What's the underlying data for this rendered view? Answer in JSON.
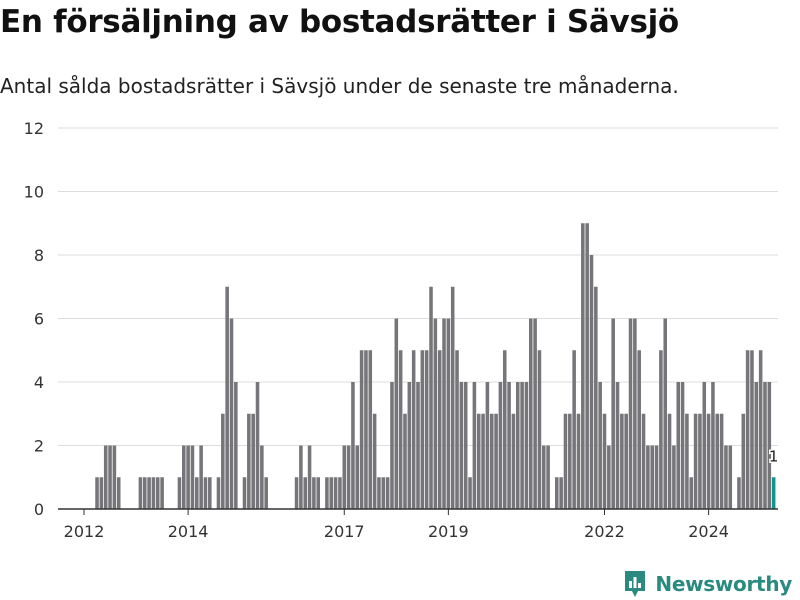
{
  "header": {
    "title": "En försäljning av bostadsrätter i Sävsjö",
    "subtitle": "Antal sålda bostadsrätter i Sävsjö under de senaste tre månaderna."
  },
  "brand": {
    "name": "Newsworthy",
    "logo_icon": "bar-chart-pin-icon"
  },
  "colors": {
    "bar": "#76767a",
    "highlight": "#12958a",
    "grid": "#dddddd",
    "brand": "#2a8a80"
  },
  "chart_data": {
    "type": "bar",
    "title": "En försäljning av bostadsrätter i Sävsjö",
    "subtitle": "Antal sålda bostadsrätter i Sävsjö under de senaste tre månaderna.",
    "xlabel": "",
    "ylabel": "",
    "ylim": [
      0,
      12
    ],
    "yticks": [
      0,
      2,
      4,
      6,
      8,
      10,
      12
    ],
    "grid": true,
    "x_start": "2011-07",
    "x_end": "2025-05",
    "x_ticks": [
      {
        "label": "2012",
        "date": "2012-01"
      },
      {
        "label": "2014",
        "date": "2014-01"
      },
      {
        "label": "2017",
        "date": "2017-01"
      },
      {
        "label": "2019",
        "date": "2019-01"
      },
      {
        "label": "2022",
        "date": "2022-01"
      },
      {
        "label": "2024",
        "date": "2024-01"
      }
    ],
    "series": [
      {
        "start": "2012-04",
        "frequency": "monthly",
        "values": [
          1,
          1,
          2,
          2,
          2,
          1,
          0,
          0,
          0,
          0,
          1,
          1,
          1,
          1,
          1,
          1,
          0,
          0,
          0,
          1,
          2,
          2,
          2,
          1,
          2,
          1,
          1,
          0,
          1,
          3,
          7,
          6,
          4,
          0,
          1,
          3,
          3,
          4,
          2,
          1,
          0,
          0,
          0,
          0,
          0,
          0,
          1,
          2,
          1,
          2,
          1,
          1,
          0,
          1,
          1,
          1,
          1,
          2,
          2,
          4,
          2,
          5,
          5,
          5,
          3,
          1,
          1,
          1,
          4,
          6,
          5,
          3,
          4,
          5,
          4,
          5,
          5,
          7,
          6,
          5,
          6,
          6,
          7,
          5,
          4,
          4,
          1,
          4,
          3,
          3,
          4,
          3,
          3,
          4,
          5,
          4,
          3,
          4,
          4,
          4,
          6,
          6,
          5,
          2,
          2,
          0,
          1,
          1,
          3,
          3,
          5,
          3,
          9,
          9,
          8,
          7,
          4,
          3,
          2,
          6,
          4,
          3,
          3,
          6,
          6,
          5,
          3,
          2,
          2,
          2,
          5,
          6,
          3,
          2,
          4,
          4,
          3,
          1,
          3,
          3,
          4,
          3,
          4,
          3,
          3,
          2,
          2,
          0,
          1,
          3,
          5,
          5,
          4,
          5,
          4,
          4,
          1
        ]
      }
    ],
    "highlight": {
      "date": "2025-04",
      "value": 1,
      "label": "1"
    }
  }
}
